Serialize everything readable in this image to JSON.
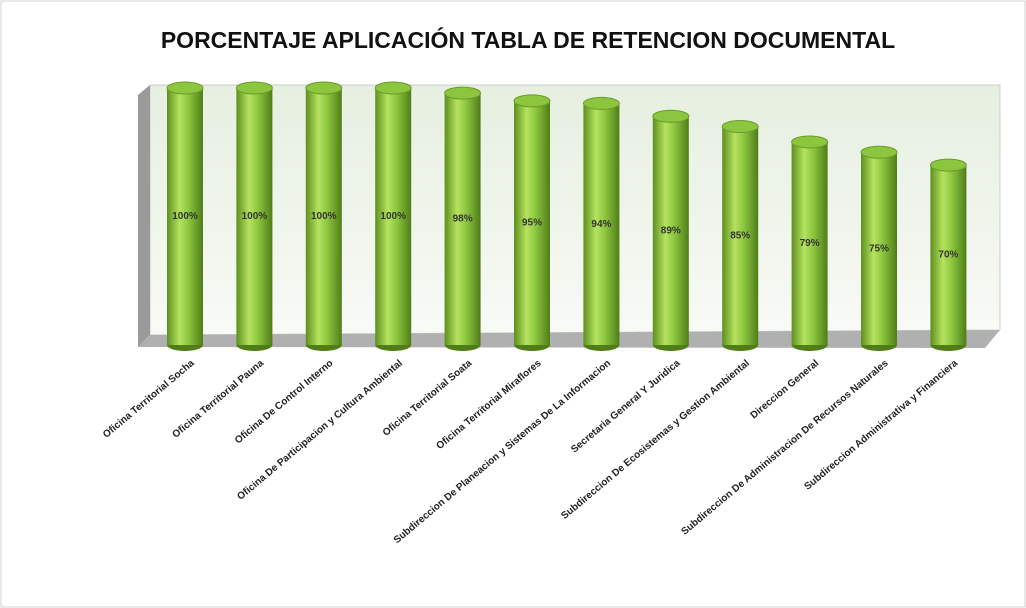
{
  "chart_data": {
    "type": "bar3d",
    "title": "PORCENTAJE APLICACIÓN TABLA DE RETENCION DOCUMENTAL",
    "categories": [
      "Oficina Territorial Socha",
      "Oficina Territorial Pauna",
      "Oficina De Control Interno",
      "Oficina De Participacion y Cultura Ambiental",
      "Oficina Territorial Soata",
      "Oficina Territorial Miraflores",
      "Subdireccion De Planeacion y Sistemas De La Informacion",
      "Secretaria General Y Juridica",
      "Subdireccion De Ecosistemas y Gestion Ambiental",
      "Direccion General",
      "Subdireccion De Administracion De Recursos Naturales",
      "Subdireccion Administrativa y Financiera"
    ],
    "values": [
      100,
      100,
      100,
      100,
      98,
      95,
      94,
      89,
      85,
      79,
      75,
      70
    ],
    "value_labels": [
      "100%",
      "100%",
      "100%",
      "100%",
      "98%",
      "95%",
      "94%",
      "89%",
      "85%",
      "79%",
      "75%",
      "70%"
    ],
    "color": "#8cc63f",
    "ylim": [
      0,
      100
    ]
  }
}
